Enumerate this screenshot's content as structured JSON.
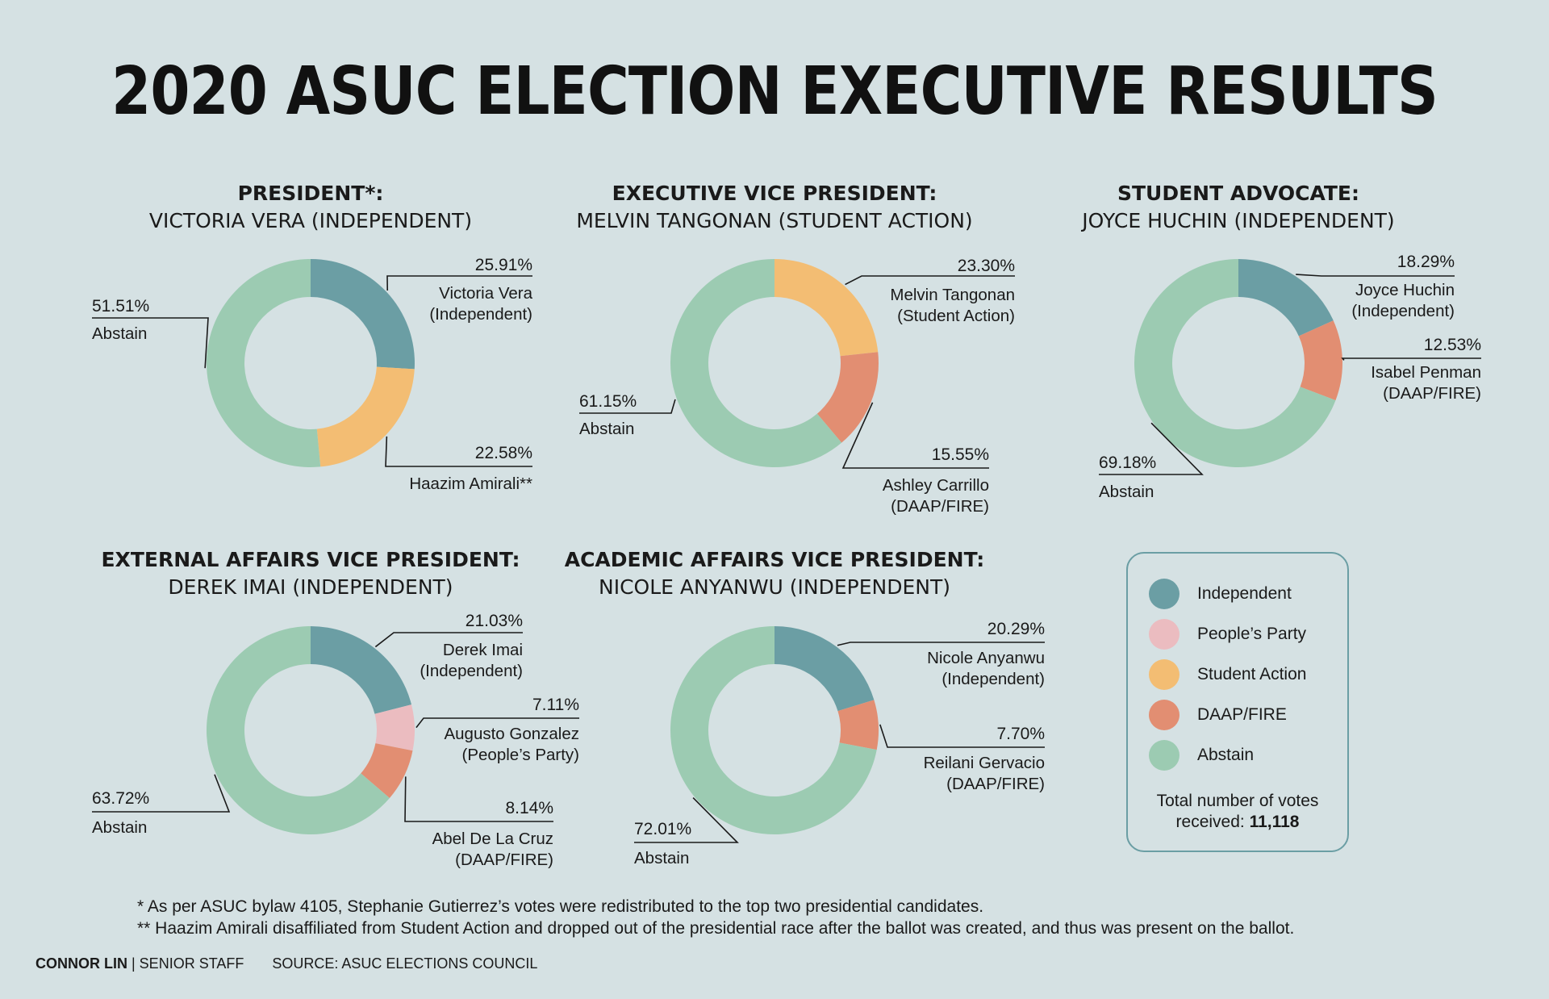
{
  "title": "2020 ASUC ELECTION EXECUTIVE RESULTS",
  "colors": {
    "Independent": "#6b9ea4",
    "People's Party": "#ebbcc0",
    "Student Action": "#f3bd73",
    "DAAP/FIRE": "#e28e72",
    "Abstain": "#9ccbb2"
  },
  "chart_data": [
    {
      "type": "pie",
      "title": "PRESIDENT*:",
      "subtitle": "VICTORIA VERA (INDEPENDENT)",
      "slices": [
        {
          "label": "Victoria Vera",
          "party": "(Independent)",
          "party_key": "Independent",
          "value": 25.91,
          "pct_label": "25.91%"
        },
        {
          "label": "Haazim Amirali**",
          "party": "",
          "party_key": "Student Action",
          "value": 22.58,
          "pct_label": "22.58%"
        },
        {
          "label": "Abstain",
          "party": "",
          "party_key": "Abstain",
          "value": 51.51,
          "pct_label": "51.51%"
        }
      ]
    },
    {
      "type": "pie",
      "title": "EXECUTIVE VICE PRESIDENT:",
      "subtitle": "MELVIN TANGONAN (STUDENT ACTION)",
      "slices": [
        {
          "label": "Melvin Tangonan",
          "party": "(Student Action)",
          "party_key": "Student Action",
          "value": 23.3,
          "pct_label": "23.30%"
        },
        {
          "label": "Ashley Carrillo",
          "party": "(DAAP/FIRE)",
          "party_key": "DAAP/FIRE",
          "value": 15.55,
          "pct_label": "15.55%"
        },
        {
          "label": "Abstain",
          "party": "",
          "party_key": "Abstain",
          "value": 61.15,
          "pct_label": "61.15%"
        }
      ]
    },
    {
      "type": "pie",
      "title": "STUDENT ADVOCATE:",
      "subtitle": "JOYCE HUCHIN (INDEPENDENT)",
      "slices": [
        {
          "label": "Joyce Huchin",
          "party": "(Independent)",
          "party_key": "Independent",
          "value": 18.29,
          "pct_label": "18.29%"
        },
        {
          "label": "Isabel Penman",
          "party": "(DAAP/FIRE)",
          "party_key": "DAAP/FIRE",
          "value": 12.53,
          "pct_label": "12.53%"
        },
        {
          "label": "Abstain",
          "party": "",
          "party_key": "Abstain",
          "value": 69.18,
          "pct_label": "69.18%"
        }
      ]
    },
    {
      "type": "pie",
      "title": "EXTERNAL AFFAIRS VICE PRESIDENT:",
      "subtitle": "DEREK IMAI (INDEPENDENT)",
      "slices": [
        {
          "label": "Derek Imai",
          "party": "(Independent)",
          "party_key": "Independent",
          "value": 21.03,
          "pct_label": "21.03%"
        },
        {
          "label": "Augusto Gonzalez",
          "party": "(People’s Party)",
          "party_key": "People's Party",
          "value": 7.11,
          "pct_label": "7.11%"
        },
        {
          "label": "Abel De La Cruz",
          "party": "(DAAP/FIRE)",
          "party_key": "DAAP/FIRE",
          "value": 8.14,
          "pct_label": "8.14%"
        },
        {
          "label": "Abstain",
          "party": "",
          "party_key": "Abstain",
          "value": 63.72,
          "pct_label": "63.72%"
        }
      ]
    },
    {
      "type": "pie",
      "title": "ACADEMIC AFFAIRS VICE PRESIDENT:",
      "subtitle": "NICOLE ANYANWU (INDEPENDENT)",
      "slices": [
        {
          "label": "Nicole Anyanwu",
          "party": "(Independent)",
          "party_key": "Independent",
          "value": 20.29,
          "pct_label": "20.29%"
        },
        {
          "label": "Reilani Gervacio",
          "party": "(DAAP/FIRE)",
          "party_key": "DAAP/FIRE",
          "value": 7.7,
          "pct_label": "7.70%"
        },
        {
          "label": "Abstain",
          "party": "",
          "party_key": "Abstain",
          "value": 72.01,
          "pct_label": "72.01%"
        }
      ]
    }
  ],
  "legend": {
    "items": [
      {
        "label": "Independent",
        "color_key": "Independent"
      },
      {
        "label": "People’s Party",
        "color_key": "People's Party"
      },
      {
        "label": "Student Action",
        "color_key": "Student Action"
      },
      {
        "label": "DAAP/FIRE",
        "color_key": "DAAP/FIRE"
      },
      {
        "label": "Abstain",
        "color_key": "Abstain"
      }
    ],
    "total_text": "Total number of votes",
    "total_text_2": "received: ",
    "total_value": "11,118"
  },
  "footnotes": [
    "* As per ASUC bylaw 4105, Stephanie Gutierrez’s votes were redistributed to the top two presidential candidates.",
    "** Haazim Amirali disaffiliated from Student Action and dropped out of the presidential race after the ballot was created, and thus was present on the ballot."
  ],
  "credit": {
    "name": "CONNOR LIN",
    "role": " | SENIOR STAFF",
    "source": "SOURCE: ASUC ELECTIONS COUNCIL"
  }
}
